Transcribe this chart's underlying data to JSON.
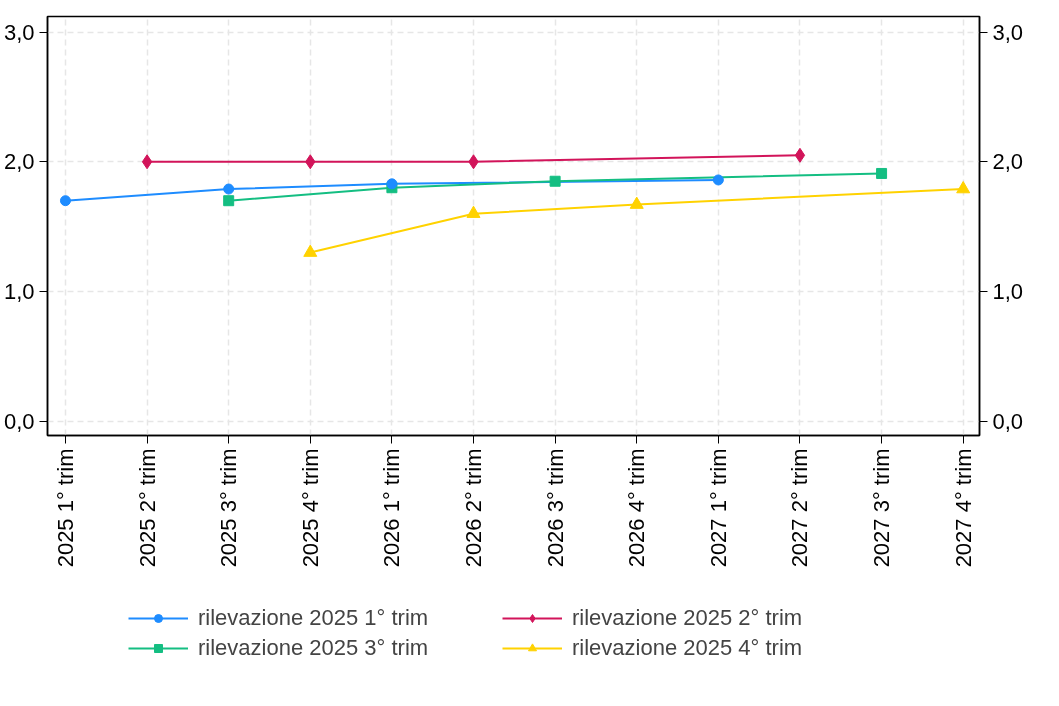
{
  "chart_data": {
    "type": "line",
    "categories": [
      "2025 1° trim",
      "2025 2° trim",
      "2025 3° trim",
      "2025 4° trim",
      "2026 1° trim",
      "2026 2° trim",
      "2026 3° trim",
      "2026 4° trim",
      "2027 1° trim",
      "2027 2° trim",
      "2027 3° trim",
      "2027 4° trim"
    ],
    "series": [
      {
        "name": "rilevazione 2025 1° trim",
        "color": "#1e8cff",
        "marker": "circle",
        "values": [
          1.7,
          null,
          1.79,
          null,
          1.83,
          null,
          null,
          null,
          1.86,
          null,
          null,
          null
        ]
      },
      {
        "name": "rilevazione 2025 2° trim",
        "color": "#d2145a",
        "marker": "diamond",
        "values": [
          null,
          2.0,
          null,
          2.0,
          null,
          2.0,
          null,
          null,
          null,
          2.05,
          null,
          null
        ]
      },
      {
        "name": "rilevazione 2025 3° trim",
        "color": "#14be82",
        "marker": "square",
        "values": [
          null,
          null,
          1.7,
          null,
          1.8,
          null,
          1.85,
          null,
          null,
          null,
          1.91,
          null
        ]
      },
      {
        "name": "rilevazione 2025 4° trim",
        "color": "#ffd200",
        "marker": "triangle",
        "values": [
          null,
          null,
          null,
          1.3,
          null,
          1.6,
          null,
          1.67,
          null,
          null,
          null,
          1.79
        ]
      }
    ],
    "ylim": [
      -0.11,
      3.12
    ],
    "yticks": [
      {
        "value": 0,
        "label": "0,0"
      },
      {
        "value": 1,
        "label": "1,0"
      },
      {
        "value": 2,
        "label": "2,0"
      },
      {
        "value": 3,
        "label": "3,0"
      }
    ],
    "y2lim": [
      -0.11,
      3.12
    ],
    "y2ticks": [
      {
        "value": 0,
        "label": "0,0"
      },
      {
        "value": 1,
        "label": "1,0"
      },
      {
        "value": 2,
        "label": "2,0"
      },
      {
        "value": 3,
        "label": "3,0"
      }
    ],
    "grid": true,
    "legend": "bottom",
    "line_style": "solid"
  }
}
